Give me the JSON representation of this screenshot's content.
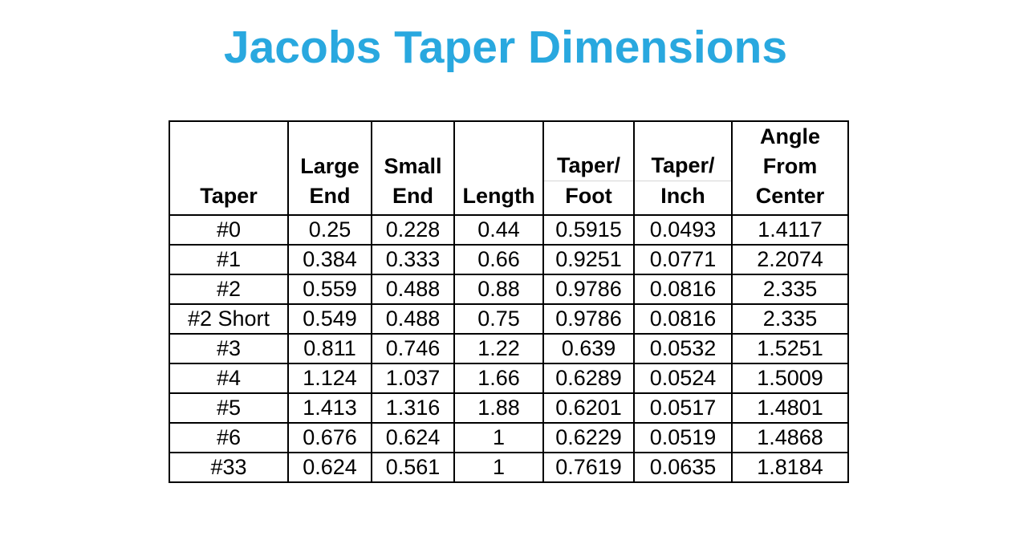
{
  "title": {
    "text": "Jacobs Taper Dimensions",
    "color": "#29a8df"
  },
  "chart_data": {
    "type": "table",
    "title": "Jacobs Taper Dimensions",
    "columns": [
      {
        "id": "taper",
        "label": "Taper",
        "lines": [
          "Taper"
        ],
        "divider_between_lines": false
      },
      {
        "id": "large-end",
        "label": "Large End",
        "lines": [
          "Large",
          "End"
        ],
        "divider_between_lines": false
      },
      {
        "id": "small-end",
        "label": "Small End",
        "lines": [
          "Small",
          "End"
        ],
        "divider_between_lines": false
      },
      {
        "id": "length",
        "label": "Length",
        "lines": [
          "Length"
        ],
        "divider_between_lines": false
      },
      {
        "id": "taper-per-foot",
        "label": "Taper/Foot",
        "lines": [
          "Taper/",
          "Foot"
        ],
        "divider_between_lines": true
      },
      {
        "id": "taper-per-inch",
        "label": "Taper/Inch",
        "lines": [
          "Taper/",
          "Inch"
        ],
        "divider_between_lines": true
      },
      {
        "id": "angle-from-center",
        "label": "Angle From Center",
        "lines": [
          "Angle",
          "From",
          "Center"
        ],
        "divider_between_lines": false
      }
    ],
    "rows": [
      [
        "#0",
        "0.25",
        "0.228",
        "0.44",
        "0.5915",
        "0.0493",
        "1.4117"
      ],
      [
        "#1",
        "0.384",
        "0.333",
        "0.66",
        "0.9251",
        "0.0771",
        "2.2074"
      ],
      [
        "#2",
        "0.559",
        "0.488",
        "0.88",
        "0.9786",
        "0.0816",
        "2.335"
      ],
      [
        "#2 Short",
        "0.549",
        "0.488",
        "0.75",
        "0.9786",
        "0.0816",
        "2.335"
      ],
      [
        "#3",
        "0.811",
        "0.746",
        "1.22",
        "0.639",
        "0.0532",
        "1.5251"
      ],
      [
        "#4",
        "1.124",
        "1.037",
        "1.66",
        "0.6289",
        "0.0524",
        "1.5009"
      ],
      [
        "#5",
        "1.413",
        "1.316",
        "1.88",
        "0.6201",
        "0.0517",
        "1.4801"
      ],
      [
        "#6",
        "0.676",
        "0.624",
        "1",
        "0.6229",
        "0.0519",
        "1.4868"
      ],
      [
        "#33",
        "0.624",
        "0.561",
        "1",
        "0.7619",
        "0.0635",
        "1.8184"
      ]
    ],
    "layout_hints": {
      "grid": "all-borders-black",
      "header_sub_divider_color": "#d6d6d6",
      "title_color": "#29a8df",
      "background": "#ffffff"
    }
  }
}
